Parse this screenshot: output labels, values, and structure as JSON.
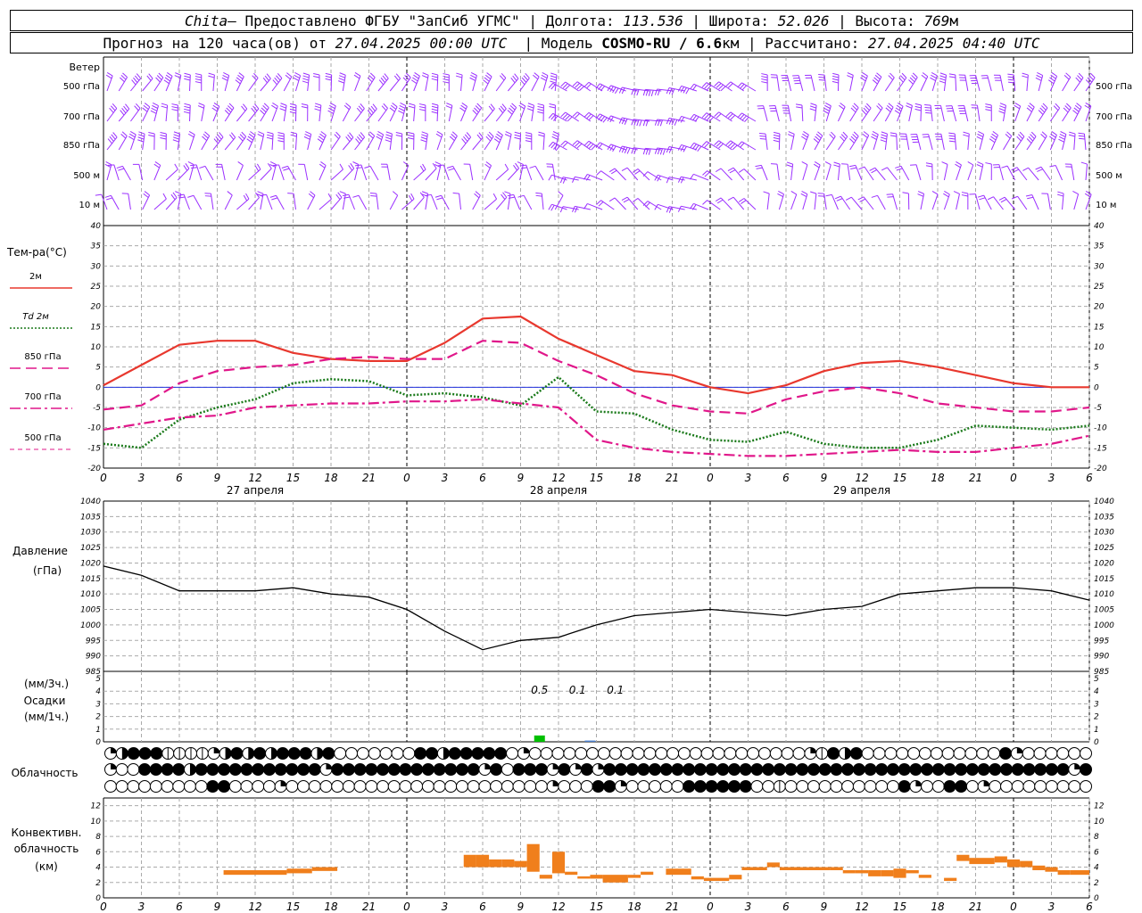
{
  "header": {
    "line1": {
      "station": "Chita",
      "provider": "— Предоставлено ФГБУ \"ЗапСиб УГМС\" | Долгота: ",
      "lon": "113.536",
      "sep1": " | Широта: ",
      "lat": "52.026",
      "sep2": " | Высота: ",
      "alt": "769",
      "alt_unit": "м"
    },
    "line2": {
      "prefix": "Прогноз на 120 часа(ов) от ",
      "start": "27.04.2025 00:00 UTC",
      "model_label": "  | Модель ",
      "model": "COSMO-RU / 6.6",
      "model_unit": "км",
      "calc_label": " | Рассчитано: ",
      "calc": "27.04.2025 04:40 UTC"
    }
  },
  "wind_panel": {
    "title": "Ветер",
    "levels": [
      "500 гПа",
      "700 гПа",
      "850 гПа",
      "500 м",
      "10  м"
    ],
    "color": "#9b30ff"
  },
  "chart_data": [
    {
      "type": "line",
      "title": "Тем-ра(°C)",
      "ylim": [
        -20,
        40
      ],
      "yticks": [
        -20,
        -15,
        -10,
        -5,
        0,
        5,
        10,
        15,
        20,
        25,
        30,
        35,
        40
      ],
      "x_hours": [
        0,
        3,
        6,
        9,
        12,
        15,
        18,
        21,
        24,
        27,
        30,
        33,
        36,
        39,
        42,
        45,
        48,
        51,
        54,
        57,
        60,
        63,
        66,
        69,
        72,
        75,
        78
      ],
      "series": [
        {
          "name": "2м",
          "color": "#e8382e",
          "style": "solid",
          "values": [
            0.5,
            5.5,
            10.5,
            11.5,
            11.5,
            8.5,
            7,
            6.5,
            6.5,
            11,
            17,
            17.5,
            12,
            8,
            4,
            3,
            0,
            -1.5,
            0.5,
            4,
            6,
            6.5,
            5,
            3,
            1,
            0,
            0
          ]
        },
        {
          "name": "Td  2м",
          "color": "#1a7a1a",
          "style": "dotted",
          "values": [
            -14,
            -15,
            -8,
            -5,
            -3,
            1,
            2,
            1.5,
            -2,
            -1.5,
            -2.5,
            -4.5,
            2.5,
            -6,
            -6.5,
            -10.5,
            -13,
            -13.5,
            -11,
            -14,
            -15,
            -15,
            -13,
            -9.5,
            -10,
            -10.5,
            -9.5
          ]
        },
        {
          "name": "850 гПа",
          "color": "#e0178a",
          "style": "dash",
          "values": [
            -5.5,
            -4.5,
            1,
            4,
            5,
            5.5,
            7,
            7.5,
            7,
            7,
            11.5,
            11,
            6.5,
            3,
            -1.5,
            -4.5,
            -6,
            -6.5,
            -3,
            -1,
            0,
            -1.5,
            -4,
            -5,
            -6,
            -6,
            -5
          ]
        },
        {
          "name": "700 гПа",
          "color": "#e0178a",
          "style": "dashdot",
          "values": [
            -10.5,
            -9,
            -7.5,
            -7,
            -5,
            -4.5,
            -4,
            -4,
            -3.5,
            -3.5,
            -3,
            -4,
            -5,
            -13,
            -15,
            -16,
            -16.5,
            -17,
            -17,
            -16.5,
            -16,
            -15.5,
            -16,
            -16,
            -15,
            -14,
            -12
          ]
        },
        {
          "name": "500 гПа",
          "color": "#e0178a",
          "style": "dashthin",
          "values": []
        }
      ]
    },
    {
      "type": "line",
      "title": "Давление",
      "ylabel": "(гПа)",
      "ylim": [
        985,
        1040
      ],
      "yticks": [
        985,
        990,
        995,
        1000,
        1005,
        1010,
        1015,
        1020,
        1025,
        1030,
        1035,
        1040
      ],
      "x_hours": [
        0,
        3,
        6,
        9,
        12,
        15,
        18,
        21,
        24,
        27,
        30,
        33,
        36,
        39,
        42,
        45,
        48,
        51,
        54,
        57,
        60,
        63,
        66,
        69,
        72,
        75,
        78
      ],
      "series": [
        {
          "name": "Давление",
          "color": "#000000",
          "values": [
            1019,
            1016,
            1011,
            1011,
            1011,
            1012,
            1010,
            1009,
            1005,
            998,
            992,
            995,
            996,
            1000,
            1003,
            1004,
            1005,
            1004,
            1003,
            1005,
            1006,
            1010,
            1011,
            1012,
            1012,
            1011,
            1008
          ]
        }
      ]
    },
    {
      "type": "bar",
      "title": "Осадки",
      "ylabel_top": "(мм/3ч.)",
      "ylabel_bottom": "(мм/1ч.)",
      "ylim": [
        0,
        5
      ],
      "yticks": [
        0,
        1,
        2,
        3,
        4,
        5
      ],
      "labels": [
        {
          "hour": 34.5,
          "text": "0.5"
        },
        {
          "hour": 37.5,
          "text": "0.1"
        },
        {
          "hour": 40.5,
          "text": "0.1"
        }
      ],
      "bars": [
        {
          "hour": 34.5,
          "value": 0.5,
          "color": "#00c000"
        },
        {
          "hour": 38.5,
          "value": 0.1,
          "color": "#4a7fd0"
        }
      ]
    },
    {
      "type": "bar",
      "title": "Конвективн. облачность",
      "ylabel": "(км)",
      "ylim": [
        0,
        13
      ],
      "yticks": [
        0,
        2,
        4,
        6,
        8,
        10,
        12
      ],
      "color": "#f07f1c",
      "segments": [
        {
          "h0": 9.5,
          "h1": 14.5,
          "lo": 3,
          "hi": 3.6
        },
        {
          "h0": 14.5,
          "h1": 16.5,
          "lo": 3.2,
          "hi": 3.8
        },
        {
          "h0": 16.5,
          "h1": 18.5,
          "lo": 3.5,
          "hi": 4
        },
        {
          "h0": 28.5,
          "h1": 29.5,
          "lo": 4,
          "hi": 5.6
        },
        {
          "h0": 29.5,
          "h1": 30.5,
          "lo": 4,
          "hi": 5.6
        },
        {
          "h0": 30.5,
          "h1": 31.5,
          "lo": 4,
          "hi": 5
        },
        {
          "h0": 31.5,
          "h1": 32.5,
          "lo": 4,
          "hi": 5
        },
        {
          "h0": 32.5,
          "h1": 33.5,
          "lo": 4,
          "hi": 4.8
        },
        {
          "h0": 33.5,
          "h1": 34.5,
          "lo": 3.4,
          "hi": 7
        },
        {
          "h0": 34.5,
          "h1": 35.5,
          "lo": 2.5,
          "hi": 3
        },
        {
          "h0": 35.5,
          "h1": 36.5,
          "lo": 3.2,
          "hi": 6
        },
        {
          "h0": 36.5,
          "h1": 37.5,
          "lo": 3,
          "hi": 3.4
        },
        {
          "h0": 37.5,
          "h1": 38.5,
          "lo": 2.5,
          "hi": 2.8
        },
        {
          "h0": 38.5,
          "h1": 39.5,
          "lo": 2.5,
          "hi": 3
        },
        {
          "h0": 39.5,
          "h1": 41.5,
          "lo": 2,
          "hi": 3
        },
        {
          "h0": 41.5,
          "h1": 42.5,
          "lo": 2.6,
          "hi": 3
        },
        {
          "h0": 42.5,
          "h1": 43.5,
          "lo": 3,
          "hi": 3.4
        },
        {
          "h0": 44.5,
          "h1": 46.5,
          "lo": 3,
          "hi": 3.8
        },
        {
          "h0": 46.5,
          "h1": 47.5,
          "lo": 2.4,
          "hi": 2.8
        },
        {
          "h0": 47.5,
          "h1": 49.5,
          "lo": 2.2,
          "hi": 2.6
        },
        {
          "h0": 49.5,
          "h1": 50.5,
          "lo": 2.4,
          "hi": 3
        },
        {
          "h0": 50.5,
          "h1": 52.5,
          "lo": 3.6,
          "hi": 4
        },
        {
          "h0": 52.5,
          "h1": 53.5,
          "lo": 4,
          "hi": 4.6
        },
        {
          "h0": 53.5,
          "h1": 57.5,
          "lo": 3.6,
          "hi": 4
        },
        {
          "h0": 57.5,
          "h1": 58.5,
          "lo": 3.6,
          "hi": 4
        },
        {
          "h0": 58.5,
          "h1": 59.5,
          "lo": 3.2,
          "hi": 3.6
        },
        {
          "h0": 59.5,
          "h1": 60.5,
          "lo": 3.2,
          "hi": 3.6
        },
        {
          "h0": 60.5,
          "h1": 61.5,
          "lo": 2.8,
          "hi": 3.6
        },
        {
          "h0": 61.5,
          "h1": 62.5,
          "lo": 2.8,
          "hi": 3.6
        },
        {
          "h0": 62.5,
          "h1": 63.5,
          "lo": 2.6,
          "hi": 3.8
        },
        {
          "h0": 63.5,
          "h1": 64.5,
          "lo": 3.2,
          "hi": 3.6
        },
        {
          "h0": 64.5,
          "h1": 65.5,
          "lo": 2.6,
          "hi": 3
        },
        {
          "h0": 66.5,
          "h1": 67.5,
          "lo": 2.2,
          "hi": 2.6
        },
        {
          "h0": 67.5,
          "h1": 68.5,
          "lo": 4.8,
          "hi": 5.6
        },
        {
          "h0": 68.5,
          "h1": 70.5,
          "lo": 4.4,
          "hi": 5.2
        },
        {
          "h0": 70.5,
          "h1": 71.5,
          "lo": 4.6,
          "hi": 5.4
        },
        {
          "h0": 71.5,
          "h1": 72.5,
          "lo": 4,
          "hi": 5
        },
        {
          "h0": 72.5,
          "h1": 73.5,
          "lo": 4,
          "hi": 4.8
        },
        {
          "h0": 73.5,
          "h1": 74.5,
          "lo": 3.6,
          "hi": 4.2
        },
        {
          "h0": 74.5,
          "h1": 75.5,
          "lo": 3.4,
          "hi": 4
        },
        {
          "h0": 75.5,
          "h1": 76.5,
          "lo": 3,
          "hi": 3.6
        },
        {
          "h0": 76.5,
          "h1": 78,
          "lo": 3,
          "hi": 3.6
        }
      ]
    }
  ],
  "cloud_panel": {
    "title": "Облачность",
    "rows": [
      "qhfffmmmmqhfhfhfffhfoooooooffhfffffoqooooooooooooooooooooooooqmfhfoooooooooooofqoooooo",
      "qooffffhfffffffffffqfffffffffffffqfofffqfqfqfffffffffffffffffffffffffffffffffffffffffqf",
      "oooooooooffooooqoooooooooooooooooooooooqoooffqoooooffffffoomoooooooooofqooffoqooooooooo"
    ]
  },
  "x_axis": {
    "hours": [
      0,
      3,
      6,
      9,
      12,
      15,
      18,
      21,
      24,
      27,
      30,
      33,
      36,
      39,
      42,
      45,
      48,
      51,
      54,
      57,
      60,
      63,
      66,
      69,
      72,
      75,
      78
    ],
    "tick_labels": [
      "0",
      "3",
      "6",
      "9",
      "12",
      "15",
      "18",
      "21",
      "0",
      "3",
      "6",
      "9",
      "12",
      "15",
      "18",
      "21",
      "0",
      "3",
      "6",
      "9",
      "12",
      "15",
      "18",
      "21",
      "0",
      "3",
      "6"
    ],
    "dates": [
      {
        "hour": 12,
        "label": "27 апреля"
      },
      {
        "hour": 36,
        "label": "28 апреля"
      },
      {
        "hour": 60,
        "label": "29 апреля"
      }
    ]
  }
}
